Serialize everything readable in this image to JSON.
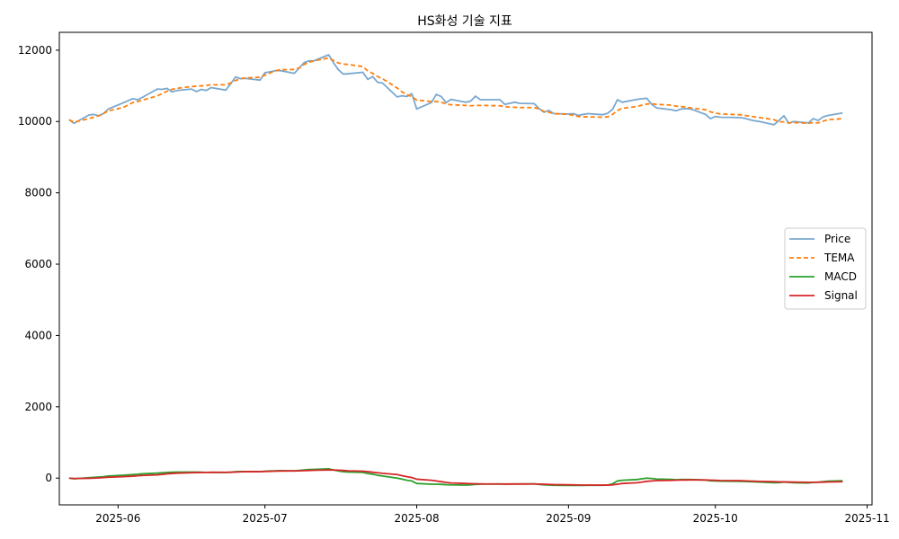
{
  "chart_data": {
    "type": "line",
    "title": "HS화성 기술 지표",
    "xlabel": "",
    "ylabel": "",
    "xlim": [
      "2025-05-20",
      "2025-11-02"
    ],
    "ylim": [
      -750,
      12500
    ],
    "x_ticks": [
      "2025-06-01",
      "2025-07-01",
      "2025-08-01",
      "2025-09-01",
      "2025-10-01",
      "2025-11-01"
    ],
    "x_tick_labels": [
      "2025-06",
      "2025-07",
      "2025-08",
      "2025-09",
      "2025-10",
      "2025-11"
    ],
    "y_ticks": [
      0,
      2000,
      4000,
      6000,
      8000,
      10000,
      12000
    ],
    "y_tick_labels": [
      "0",
      "2000",
      "4000",
      "6000",
      "8000",
      "10000",
      "12000"
    ],
    "grid": false,
    "legend_position": "center-right",
    "x": [
      "2025-05-22",
      "2025-05-23",
      "2025-05-26",
      "2025-05-27",
      "2025-05-28",
      "2025-05-29",
      "2025-05-30",
      "2025-06-02",
      "2025-06-04",
      "2025-06-05",
      "2025-06-06",
      "2025-06-09",
      "2025-06-10",
      "2025-06-11",
      "2025-06-12",
      "2025-06-13",
      "2025-06-16",
      "2025-06-17",
      "2025-06-18",
      "2025-06-19",
      "2025-06-20",
      "2025-06-23",
      "2025-06-24",
      "2025-06-25",
      "2025-06-26",
      "2025-06-27",
      "2025-06-30",
      "2025-07-01",
      "2025-07-02",
      "2025-07-03",
      "2025-07-04",
      "2025-07-07",
      "2025-07-08",
      "2025-07-09",
      "2025-07-10",
      "2025-07-11",
      "2025-07-14",
      "2025-07-15",
      "2025-07-16",
      "2025-07-17",
      "2025-07-18",
      "2025-07-21",
      "2025-07-22",
      "2025-07-23",
      "2025-07-24",
      "2025-07-25",
      "2025-07-28",
      "2025-07-29",
      "2025-07-30",
      "2025-07-31",
      "2025-08-01",
      "2025-08-04",
      "2025-08-05",
      "2025-08-06",
      "2025-08-07",
      "2025-08-08",
      "2025-08-11",
      "2025-08-12",
      "2025-08-13",
      "2025-08-14",
      "2025-08-15",
      "2025-08-18",
      "2025-08-19",
      "2025-08-20",
      "2025-08-21",
      "2025-08-22",
      "2025-08-25",
      "2025-08-26",
      "2025-08-27",
      "2025-08-28",
      "2025-08-29",
      "2025-09-01",
      "2025-09-02",
      "2025-09-03",
      "2025-09-04",
      "2025-09-05",
      "2025-09-08",
      "2025-09-09",
      "2025-09-10",
      "2025-09-11",
      "2025-09-12",
      "2025-09-15",
      "2025-09-16",
      "2025-09-17",
      "2025-09-18",
      "2025-09-19",
      "2025-09-22",
      "2025-09-23",
      "2025-09-24",
      "2025-09-25",
      "2025-09-26",
      "2025-09-29",
      "2025-09-30",
      "2025-10-01",
      "2025-10-02",
      "2025-10-06",
      "2025-10-07",
      "2025-10-08",
      "2025-10-09",
      "2025-10-10",
      "2025-10-13",
      "2025-10-14",
      "2025-10-15",
      "2025-10-16",
      "2025-10-17",
      "2025-10-20",
      "2025-10-21",
      "2025-10-22",
      "2025-10-23",
      "2025-10-24",
      "2025-10-27"
    ],
    "series": [
      {
        "name": "Price",
        "color": "#7aa8cf",
        "dash": "solid",
        "values": [
          10050,
          9950,
          10180,
          10200,
          10160,
          10220,
          10350,
          10520,
          10640,
          10610,
          10680,
          10910,
          10900,
          10930,
          10830,
          10870,
          10910,
          10840,
          10900,
          10870,
          10950,
          10880,
          11060,
          11250,
          11200,
          11210,
          11160,
          11370,
          11390,
          11420,
          11430,
          11350,
          11500,
          11650,
          11700,
          11700,
          11870,
          11650,
          11450,
          11330,
          11340,
          11380,
          11180,
          11260,
          11100,
          11080,
          10690,
          10720,
          10700,
          10780,
          10350,
          10530,
          10760,
          10700,
          10530,
          10620,
          10540,
          10570,
          10710,
          10610,
          10610,
          10610,
          10480,
          10510,
          10540,
          10510,
          10500,
          10360,
          10260,
          10310,
          10220,
          10210,
          10220,
          10170,
          10200,
          10220,
          10190,
          10230,
          10340,
          10610,
          10540,
          10620,
          10640,
          10650,
          10480,
          10380,
          10330,
          10300,
          10350,
          10360,
          10350,
          10200,
          10080,
          10140,
          10120,
          10110,
          10090,
          10050,
          10020,
          10000,
          9910,
          10030,
          10160,
          9950,
          10000,
          9960,
          10080,
          10030,
          10130,
          10170,
          10240
        ]
      },
      {
        "name": "TEMA",
        "color": "#ff7f0e",
        "dash": "dashed",
        "values": [
          10050,
          9980,
          10080,
          10120,
          10160,
          10220,
          10300,
          10390,
          10530,
          10560,
          10600,
          10720,
          10780,
          10850,
          10900,
          10930,
          10980,
          10990,
          11000,
          11010,
          11030,
          11030,
          11080,
          11150,
          11200,
          11220,
          11240,
          11300,
          11360,
          11420,
          11450,
          11460,
          11500,
          11600,
          11660,
          11700,
          11780,
          11710,
          11640,
          11610,
          11600,
          11540,
          11420,
          11350,
          11260,
          11200,
          10940,
          10830,
          10750,
          10700,
          10600,
          10560,
          10560,
          10540,
          10490,
          10470,
          10450,
          10440,
          10450,
          10450,
          10450,
          10440,
          10420,
          10400,
          10400,
          10390,
          10390,
          10350,
          10280,
          10260,
          10220,
          10200,
          10170,
          10140,
          10130,
          10130,
          10120,
          10130,
          10200,
          10310,
          10370,
          10420,
          10460,
          10490,
          10500,
          10480,
          10460,
          10430,
          10420,
          10400,
          10380,
          10330,
          10270,
          10240,
          10210,
          10190,
          10170,
          10150,
          10130,
          10110,
          10050,
          9990,
          9990,
          9960,
          9970,
          9950,
          9970,
          9960,
          10010,
          10050,
          10080
        ]
      },
      {
        "name": "MACD",
        "color": "#2ca02c",
        "dash": "solid",
        "values": [
          0,
          -20,
          10,
          20,
          30,
          40,
          60,
          80,
          100,
          110,
          120,
          140,
          150,
          160,
          165,
          168,
          170,
          168,
          165,
          160,
          162,
          158,
          165,
          180,
          185,
          185,
          180,
          195,
          200,
          205,
          210,
          205,
          215,
          230,
          240,
          245,
          260,
          230,
          200,
          180,
          170,
          160,
          130,
          110,
          80,
          60,
          0,
          -30,
          -60,
          -80,
          -150,
          -170,
          -170,
          -175,
          -185,
          -190,
          -195,
          -190,
          -175,
          -170,
          -168,
          -165,
          -170,
          -168,
          -165,
          -165,
          -162,
          -175,
          -190,
          -195,
          -200,
          -205,
          -205,
          -205,
          -205,
          -200,
          -200,
          -195,
          -160,
          -80,
          -60,
          -40,
          -20,
          0,
          -10,
          -25,
          -35,
          -45,
          -40,
          -38,
          -40,
          -55,
          -75,
          -80,
          -85,
          -90,
          -95,
          -100,
          -105,
          -110,
          -130,
          -125,
          -110,
          -120,
          -130,
          -135,
          -120,
          -115,
          -100,
          -85,
          -75
        ]
      },
      {
        "name": "Signal",
        "color": "#d62728",
        "dash": "solid",
        "values": [
          0,
          -10,
          -5,
          0,
          5,
          15,
          25,
          40,
          55,
          65,
          75,
          90,
          105,
          120,
          130,
          140,
          150,
          155,
          158,
          160,
          162,
          163,
          165,
          170,
          175,
          180,
          180,
          185,
          190,
          195,
          200,
          202,
          205,
          210,
          215,
          220,
          230,
          228,
          222,
          215,
          205,
          195,
          180,
          165,
          150,
          135,
          100,
          70,
          40,
          15,
          -30,
          -60,
          -80,
          -100,
          -120,
          -135,
          -150,
          -155,
          -160,
          -162,
          -164,
          -165,
          -166,
          -166,
          -166,
          -166,
          -165,
          -167,
          -172,
          -177,
          -182,
          -187,
          -190,
          -193,
          -195,
          -196,
          -197,
          -197,
          -190,
          -170,
          -150,
          -130,
          -110,
          -90,
          -80,
          -70,
          -63,
          -58,
          -55,
          -52,
          -50,
          -52,
          -57,
          -62,
          -67,
          -72,
          -77,
          -82,
          -87,
          -92,
          -100,
          -105,
          -106,
          -109,
          -113,
          -117,
          -117,
          -116,
          -113,
          -108,
          -101
        ]
      }
    ]
  }
}
